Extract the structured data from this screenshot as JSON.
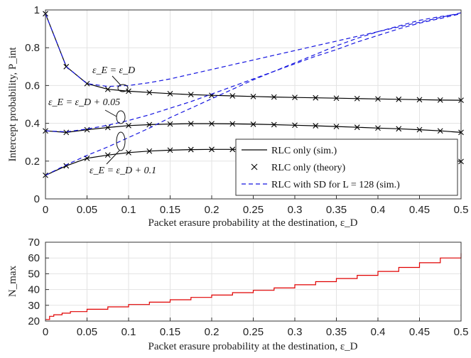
{
  "chart_data": [
    {
      "type": "line",
      "ylabel": "Intercept probability, P_int",
      "xlabel": "Packet erasure probability at the destination, ε_D",
      "xlim": [
        0,
        0.5
      ],
      "ylim": [
        0,
        1
      ],
      "xticks": [
        "0",
        "0.05",
        "0.1",
        "0.15",
        "0.2",
        "0.25",
        "0.3",
        "0.35",
        "0.4",
        "0.45",
        "0.5"
      ],
      "yticks": [
        "0",
        "0.2",
        "0.4",
        "0.6",
        "0.8",
        "1"
      ],
      "grid": true,
      "legend_position": "bottom-right",
      "legend": [
        {
          "label": "RLC only (sim.)",
          "style": "solid-black"
        },
        {
          "label": "RLC only (theory)",
          "style": "x-marker"
        },
        {
          "label": "RLC with SD for L = 128 (sim.)",
          "style": "dashed-blue"
        }
      ],
      "annotations": [
        "ε_E = ε_D",
        "ε_E = ε_D + 0.05",
        "ε_E = ε_D + 0.1"
      ],
      "x": [
        0,
        0.025,
        0.05,
        0.075,
        0.1,
        0.125,
        0.15,
        0.175,
        0.2,
        0.225,
        0.25,
        0.275,
        0.3,
        0.325,
        0.35,
        0.375,
        0.4,
        0.425,
        0.45,
        0.475,
        0.5
      ],
      "series": [
        {
          "group": "ε_E = ε_D",
          "kind": "sim",
          "values": [
            0.98,
            0.7,
            0.61,
            0.58,
            0.57,
            0.563,
            0.557,
            0.552,
            0.548,
            0.545,
            0.542,
            0.539,
            0.537,
            0.535,
            0.533,
            0.531,
            0.529,
            0.527,
            0.525,
            0.523,
            0.522
          ]
        },
        {
          "group": "ε_E = ε_D",
          "kind": "theory",
          "values": [
            0.98,
            0.7,
            0.61,
            0.58,
            0.57,
            0.563,
            0.557,
            0.552,
            0.548,
            0.545,
            0.542,
            0.539,
            0.537,
            0.535,
            0.533,
            0.531,
            0.529,
            0.527,
            0.525,
            0.523,
            0.522
          ]
        },
        {
          "group": "ε_E = ε_D",
          "kind": "sd",
          "values": [
            0.98,
            0.7,
            0.61,
            0.595,
            0.6,
            0.615,
            0.635,
            0.66,
            0.685,
            0.71,
            0.735,
            0.76,
            0.785,
            0.81,
            0.835,
            0.86,
            0.885,
            0.91,
            0.935,
            0.96,
            0.985
          ]
        },
        {
          "group": "ε_E = ε_D + 0.05",
          "kind": "sim",
          "values": [
            0.36,
            0.352,
            0.366,
            0.378,
            0.388,
            0.393,
            0.396,
            0.398,
            0.398,
            0.397,
            0.395,
            0.393,
            0.39,
            0.387,
            0.383,
            0.379,
            0.375,
            0.371,
            0.366,
            0.36,
            0.352
          ]
        },
        {
          "group": "ε_E = ε_D + 0.05",
          "kind": "theory",
          "values": [
            0.36,
            0.352,
            0.366,
            0.378,
            0.388,
            0.393,
            0.396,
            0.398,
            0.398,
            0.397,
            0.395,
            0.393,
            0.39,
            0.387,
            0.383,
            0.379,
            0.375,
            0.371,
            0.366,
            0.36,
            0.352
          ]
        },
        {
          "group": "ε_E = ε_D + 0.05",
          "kind": "sd",
          "values": [
            0.36,
            0.355,
            0.37,
            0.39,
            0.415,
            0.445,
            0.48,
            0.515,
            0.555,
            0.595,
            0.635,
            0.675,
            0.715,
            0.755,
            0.79,
            0.83,
            0.865,
            0.9,
            0.93,
            0.955,
            0.98
          ]
        },
        {
          "group": "ε_E = ε_D + 0.1",
          "kind": "sim",
          "values": [
            0.125,
            0.175,
            0.215,
            0.232,
            0.245,
            0.253,
            0.258,
            0.261,
            0.262,
            0.262,
            0.261,
            0.259,
            0.256,
            0.252,
            0.248,
            0.243,
            0.237,
            0.23,
            0.222,
            0.212,
            0.198
          ]
        },
        {
          "group": "ε_E = ε_D + 0.1",
          "kind": "theory",
          "values": [
            0.125,
            0.175,
            0.215,
            0.232,
            0.245,
            0.253,
            0.258,
            0.261,
            0.262,
            0.262,
            0.261,
            0.259,
            0.256,
            0.252,
            0.248,
            0.243,
            0.237,
            0.23,
            0.222,
            0.212,
            0.198
          ]
        },
        {
          "group": "ε_E = ε_D + 0.1",
          "kind": "sd",
          "values": [
            0.125,
            0.18,
            0.23,
            0.275,
            0.325,
            0.375,
            0.43,
            0.48,
            0.53,
            0.58,
            0.63,
            0.675,
            0.72,
            0.765,
            0.81,
            0.85,
            0.885,
            0.915,
            0.945,
            0.965,
            0.98
          ]
        }
      ]
    },
    {
      "type": "line",
      "ylabel": "N_max",
      "xlabel": "Packet erasure probability at the destination, ε_D",
      "xlim": [
        0,
        0.5
      ],
      "ylim": [
        20,
        70
      ],
      "xticks": [
        "0",
        "0.05",
        "0.1",
        "0.15",
        "0.2",
        "0.25",
        "0.3",
        "0.35",
        "0.4",
        "0.45",
        "0.5"
      ],
      "yticks": [
        "20",
        "30",
        "40",
        "50",
        "60",
        "70"
      ],
      "grid": true,
      "series": [
        {
          "name": "N_max",
          "color": "#e00000",
          "step": true,
          "x": [
            0,
            0.005,
            0.01,
            0.02,
            0.03,
            0.05,
            0.075,
            0.1,
            0.125,
            0.15,
            0.175,
            0.2,
            0.225,
            0.25,
            0.275,
            0.3,
            0.325,
            0.35,
            0.375,
            0.4,
            0.425,
            0.45,
            0.475,
            0.5
          ],
          "values": [
            21,
            23,
            24,
            25,
            26,
            27.5,
            29,
            30.5,
            32,
            33.5,
            35,
            36.5,
            38,
            39.5,
            41,
            43,
            45,
            47,
            49,
            51.5,
            54,
            57,
            60,
            63
          ]
        }
      ]
    }
  ]
}
